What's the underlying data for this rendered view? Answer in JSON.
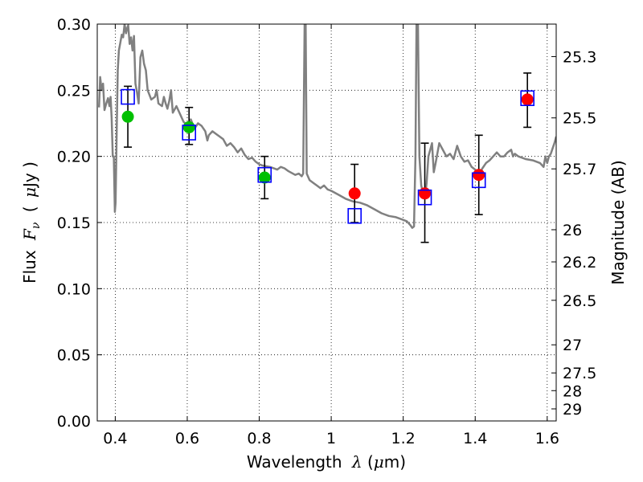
{
  "chart_data": {
    "type": "scatter",
    "xlabel": {
      "prefix": "Wavelength",
      "symbol": "λ",
      "unit_open": "(",
      "unit_mu": "μ",
      "unit_rest": "m)"
    },
    "ylabel": {
      "prefix": "Flux",
      "symbol": "F",
      "subscript": "ν",
      "unit_open": "(",
      "unit_mu": "μ",
      "unit_rest": "Jy )"
    },
    "y2label": "Magnitude (AB)",
    "xlim": [
      0.35,
      1.625
    ],
    "ylim": [
      0.0,
      0.3
    ],
    "grid": true,
    "x_ticks": [
      {
        "value": 0.4,
        "label": "0.4"
      },
      {
        "value": 0.6,
        "label": "0.6"
      },
      {
        "value": 0.8,
        "label": "0.8"
      },
      {
        "value": 1.0,
        "label": "1"
      },
      {
        "value": 1.2,
        "label": "1.2"
      },
      {
        "value": 1.4,
        "label": "1.4"
      },
      {
        "value": 1.6,
        "label": "1.6"
      }
    ],
    "y_ticks": [
      {
        "value": 0.0,
        "label": "0.00"
      },
      {
        "value": 0.05,
        "label": "0.05"
      },
      {
        "value": 0.1,
        "label": "0.10"
      },
      {
        "value": 0.15,
        "label": "0.15"
      },
      {
        "value": 0.2,
        "label": "0.20"
      },
      {
        "value": 0.25,
        "label": "0.25"
      },
      {
        "value": 0.3,
        "label": "0.30"
      }
    ],
    "y2_ticks": [
      {
        "mag": 25.3,
        "label": "25.3"
      },
      {
        "mag": 25.5,
        "label": "25.5"
      },
      {
        "mag": 25.7,
        "label": "25.7"
      },
      {
        "mag": 26.0,
        "label": "26"
      },
      {
        "mag": 26.2,
        "label": "26.2"
      },
      {
        "mag": 26.5,
        "label": "26.5"
      },
      {
        "mag": 27.0,
        "label": "27"
      },
      {
        "mag": 27.5,
        "label": "27.5"
      },
      {
        "mag": 28.0,
        "label": "28"
      },
      {
        "mag": 29.0,
        "label": "29"
      }
    ],
    "series": [
      {
        "kind": "line",
        "color": "#808080",
        "points": [
          [
            0.355,
            0.237
          ],
          [
            0.358,
            0.26
          ],
          [
            0.362,
            0.25
          ],
          [
            0.366,
            0.255
          ],
          [
            0.37,
            0.235
          ],
          [
            0.375,
            0.24
          ],
          [
            0.38,
            0.244
          ],
          [
            0.384,
            0.238
          ],
          [
            0.387,
            0.245
          ],
          [
            0.39,
            0.229
          ],
          [
            0.393,
            0.2
          ],
          [
            0.396,
            0.2
          ],
          [
            0.399,
            0.158
          ],
          [
            0.401,
            0.165
          ],
          [
            0.404,
            0.22
          ],
          [
            0.407,
            0.265
          ],
          [
            0.41,
            0.28
          ],
          [
            0.414,
            0.286
          ],
          [
            0.418,
            0.292
          ],
          [
            0.422,
            0.29
          ],
          [
            0.426,
            0.3
          ],
          [
            0.43,
            0.293
          ],
          [
            0.433,
            0.297
          ],
          [
            0.436,
            0.299
          ],
          [
            0.44,
            0.285
          ],
          [
            0.444,
            0.29
          ],
          [
            0.448,
            0.28
          ],
          [
            0.452,
            0.291
          ],
          [
            0.456,
            0.255
          ],
          [
            0.46,
            0.249
          ],
          [
            0.465,
            0.24
          ],
          [
            0.47,
            0.275
          ],
          [
            0.475,
            0.28
          ],
          [
            0.48,
            0.27
          ],
          [
            0.485,
            0.265
          ],
          [
            0.49,
            0.25
          ],
          [
            0.5,
            0.243
          ],
          [
            0.51,
            0.245
          ],
          [
            0.515,
            0.25
          ],
          [
            0.52,
            0.24
          ],
          [
            0.53,
            0.238
          ],
          [
            0.535,
            0.245
          ],
          [
            0.54,
            0.24
          ],
          [
            0.545,
            0.236
          ],
          [
            0.55,
            0.242
          ],
          [
            0.555,
            0.25
          ],
          [
            0.56,
            0.233
          ],
          [
            0.57,
            0.238
          ],
          [
            0.58,
            0.232
          ],
          [
            0.59,
            0.226
          ],
          [
            0.6,
            0.224
          ],
          [
            0.61,
            0.228
          ],
          [
            0.62,
            0.221
          ],
          [
            0.63,
            0.225
          ],
          [
            0.64,
            0.223
          ],
          [
            0.65,
            0.219
          ],
          [
            0.656,
            0.212
          ],
          [
            0.66,
            0.216
          ],
          [
            0.67,
            0.219
          ],
          [
            0.68,
            0.217
          ],
          [
            0.69,
            0.215
          ],
          [
            0.7,
            0.213
          ],
          [
            0.71,
            0.208
          ],
          [
            0.72,
            0.21
          ],
          [
            0.73,
            0.207
          ],
          [
            0.74,
            0.203
          ],
          [
            0.75,
            0.206
          ],
          [
            0.76,
            0.201
          ],
          [
            0.77,
            0.198
          ],
          [
            0.78,
            0.199
          ],
          [
            0.79,
            0.196
          ],
          [
            0.8,
            0.194
          ],
          [
            0.81,
            0.193
          ],
          [
            0.83,
            0.192
          ],
          [
            0.85,
            0.19
          ],
          [
            0.86,
            0.192
          ],
          [
            0.87,
            0.191
          ],
          [
            0.88,
            0.189
          ],
          [
            0.9,
            0.186
          ],
          [
            0.91,
            0.187
          ],
          [
            0.918,
            0.185
          ],
          [
            0.922,
            0.187
          ],
          [
            0.926,
            0.3
          ],
          [
            0.929,
            0.3
          ],
          [
            0.932,
            0.187
          ],
          [
            0.94,
            0.182
          ],
          [
            0.95,
            0.18
          ],
          [
            0.96,
            0.178
          ],
          [
            0.97,
            0.176
          ],
          [
            0.98,
            0.178
          ],
          [
            0.99,
            0.175
          ],
          [
            1.0,
            0.174
          ],
          [
            1.02,
            0.171
          ],
          [
            1.04,
            0.168
          ],
          [
            1.06,
            0.166
          ],
          [
            1.08,
            0.165
          ],
          [
            1.1,
            0.163
          ],
          [
            1.12,
            0.16
          ],
          [
            1.14,
            0.157
          ],
          [
            1.16,
            0.155
          ],
          [
            1.18,
            0.154
          ],
          [
            1.2,
            0.152
          ],
          [
            1.21,
            0.151
          ],
          [
            1.22,
            0.148
          ],
          [
            1.225,
            0.146
          ],
          [
            1.23,
            0.147
          ],
          [
            1.234,
            0.2
          ],
          [
            1.237,
            0.3
          ],
          [
            1.241,
            0.3
          ],
          [
            1.245,
            0.2
          ],
          [
            1.25,
            0.178
          ],
          [
            1.255,
            0.172
          ],
          [
            1.26,
            0.168
          ],
          [
            1.265,
            0.18
          ],
          [
            1.27,
            0.2
          ],
          [
            1.275,
            0.205
          ],
          [
            1.28,
            0.21
          ],
          [
            1.285,
            0.188
          ],
          [
            1.29,
            0.195
          ],
          [
            1.3,
            0.21
          ],
          [
            1.31,
            0.205
          ],
          [
            1.32,
            0.2
          ],
          [
            1.33,
            0.202
          ],
          [
            1.34,
            0.198
          ],
          [
            1.345,
            0.203
          ],
          [
            1.35,
            0.208
          ],
          [
            1.36,
            0.2
          ],
          [
            1.37,
            0.196
          ],
          [
            1.38,
            0.197
          ],
          [
            1.39,
            0.192
          ],
          [
            1.4,
            0.19
          ],
          [
            1.41,
            0.186
          ],
          [
            1.42,
            0.191
          ],
          [
            1.43,
            0.195
          ],
          [
            1.44,
            0.197
          ],
          [
            1.45,
            0.2
          ],
          [
            1.46,
            0.203
          ],
          [
            1.47,
            0.2
          ],
          [
            1.48,
            0.2
          ],
          [
            1.49,
            0.203
          ],
          [
            1.5,
            0.205
          ],
          [
            1.505,
            0.2
          ],
          [
            1.51,
            0.202
          ],
          [
            1.52,
            0.2
          ],
          [
            1.54,
            0.198
          ],
          [
            1.56,
            0.197
          ],
          [
            1.58,
            0.195
          ],
          [
            1.59,
            0.192
          ],
          [
            1.595,
            0.2
          ],
          [
            1.6,
            0.195
          ],
          [
            1.605,
            0.2
          ],
          [
            1.61,
            0.202
          ],
          [
            1.615,
            0.206
          ],
          [
            1.62,
            0.21
          ],
          [
            1.625,
            0.215
          ]
        ]
      },
      {
        "kind": "open-square",
        "color": "#0000ff",
        "points": [
          [
            0.435,
            0.245
          ],
          [
            0.605,
            0.218
          ],
          [
            0.815,
            0.186
          ],
          [
            1.065,
            0.155
          ],
          [
            1.26,
            0.169
          ],
          [
            1.41,
            0.182
          ],
          [
            1.545,
            0.244
          ]
        ]
      },
      {
        "kind": "circle",
        "color": "#00c000",
        "points": [
          [
            0.435,
            0.23
          ],
          [
            0.605,
            0.222
          ],
          [
            0.815,
            0.184
          ]
        ]
      },
      {
        "kind": "circle",
        "color": "#ff0000",
        "points": [
          [
            1.065,
            0.172
          ],
          [
            1.26,
            0.172
          ],
          [
            1.41,
            0.186
          ],
          [
            1.545,
            0.243
          ]
        ]
      },
      {
        "kind": "errorbar",
        "color": "#000000",
        "points": [
          {
            "x": 0.435,
            "low": 0.207,
            "high": 0.253
          },
          {
            "x": 0.605,
            "low": 0.209,
            "high": 0.237
          },
          {
            "x": 0.815,
            "low": 0.168,
            "high": 0.2
          },
          {
            "x": 1.065,
            "low": 0.15,
            "high": 0.194
          },
          {
            "x": 1.26,
            "low": 0.135,
            "high": 0.21
          },
          {
            "x": 1.41,
            "low": 0.156,
            "high": 0.216
          },
          {
            "x": 1.545,
            "low": 0.222,
            "high": 0.263
          }
        ]
      }
    ]
  }
}
